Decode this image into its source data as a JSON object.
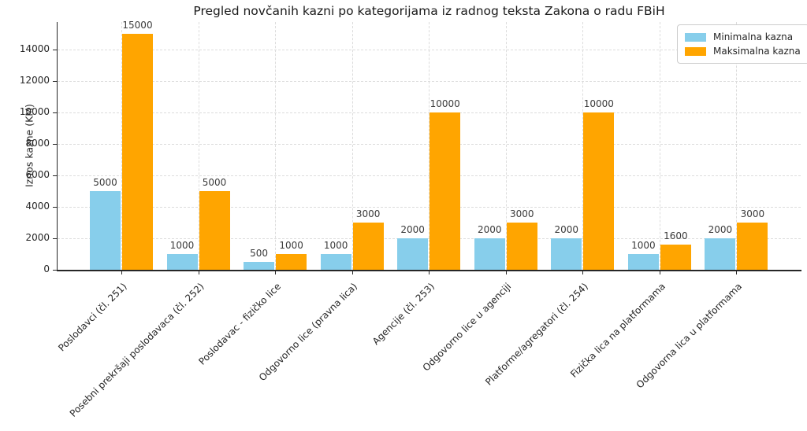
{
  "chart_data": {
    "type": "bar",
    "title": "Pregled novčanih kazni po kategorijama iz radnog teksta Zakona o radu FBiH",
    "xlabel": "",
    "ylabel": "Iznos kazne (KM)",
    "categories": [
      "Poslodavci (čl. 251)",
      "Posebni prekršaji poslodavaca (čl. 252)",
      "Poslodavac - fizičko lice",
      "Odgovorno lice (pravna lica)",
      "Agencije (čl. 253)",
      "Odgovorno lice u agenciji",
      "Platforme/agregatori (čl. 254)",
      "Fizička lica na platformama",
      "Odgovorna lica u platformama"
    ],
    "series": [
      {
        "name": "Minimalna kazna",
        "color": "#87CEEB",
        "values": [
          5000,
          1000,
          500,
          1000,
          2000,
          2000,
          2000,
          1000,
          2000
        ]
      },
      {
        "name": "Maksimalna kazna",
        "color": "#FFA500",
        "values": [
          15000,
          5000,
          1000,
          3000,
          10000,
          3000,
          10000,
          1600,
          3000
        ]
      }
    ],
    "yticks": [
      0,
      2000,
      4000,
      6000,
      8000,
      10000,
      12000,
      14000
    ],
    "ylim": [
      0,
      15750
    ],
    "grid": "both-dashed",
    "legend_position": "upper right",
    "bar_value_labels": true
  },
  "colors": {
    "min_bar": "#87CEEB",
    "max_bar": "#FFA500",
    "gridline": "#dcdcdc",
    "axis": "#262626",
    "value_label": "#3a3a3a",
    "legend_border": "#cccccc",
    "background": "#ffffff"
  }
}
